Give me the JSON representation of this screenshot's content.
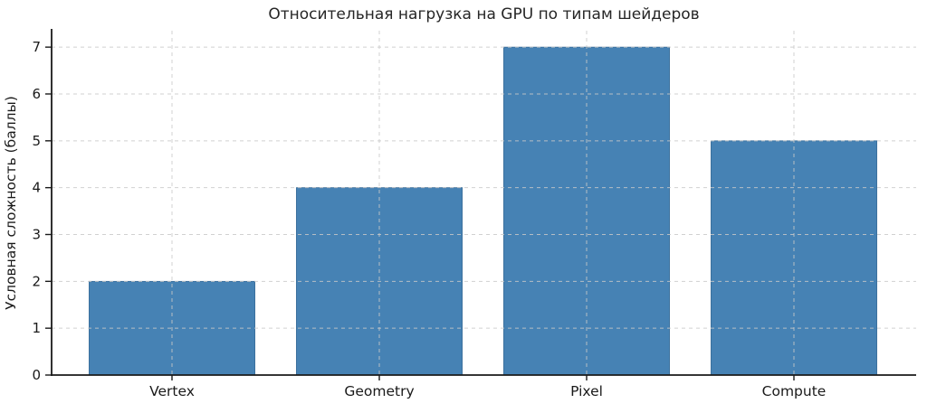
{
  "figure": {
    "background": "#ffffff"
  },
  "chart_data": {
    "type": "bar",
    "title": "Относительная нагрузка на GPU по типам шейдеров",
    "categories": [
      "Vertex",
      "Geometry",
      "Pixel",
      "Compute"
    ],
    "values": [
      2,
      4,
      7,
      5
    ],
    "xlabel": "",
    "ylabel": "Условная сложность (баллы)",
    "ylim": [
      0,
      7.35
    ],
    "yticks": [
      0,
      1,
      2,
      3,
      4,
      5,
      6,
      7
    ],
    "grid": "both, dashed, drawn over bars",
    "legend": "none",
    "bar_width_fraction": 0.8,
    "colors": {
      "bar_fill": "#4682B4",
      "bar_edge": "#3a6d99",
      "axis": "#1a1a1a",
      "grid": "#c9c9c9",
      "title_text": "#262626",
      "tick_text": "#1a1a1a"
    }
  }
}
